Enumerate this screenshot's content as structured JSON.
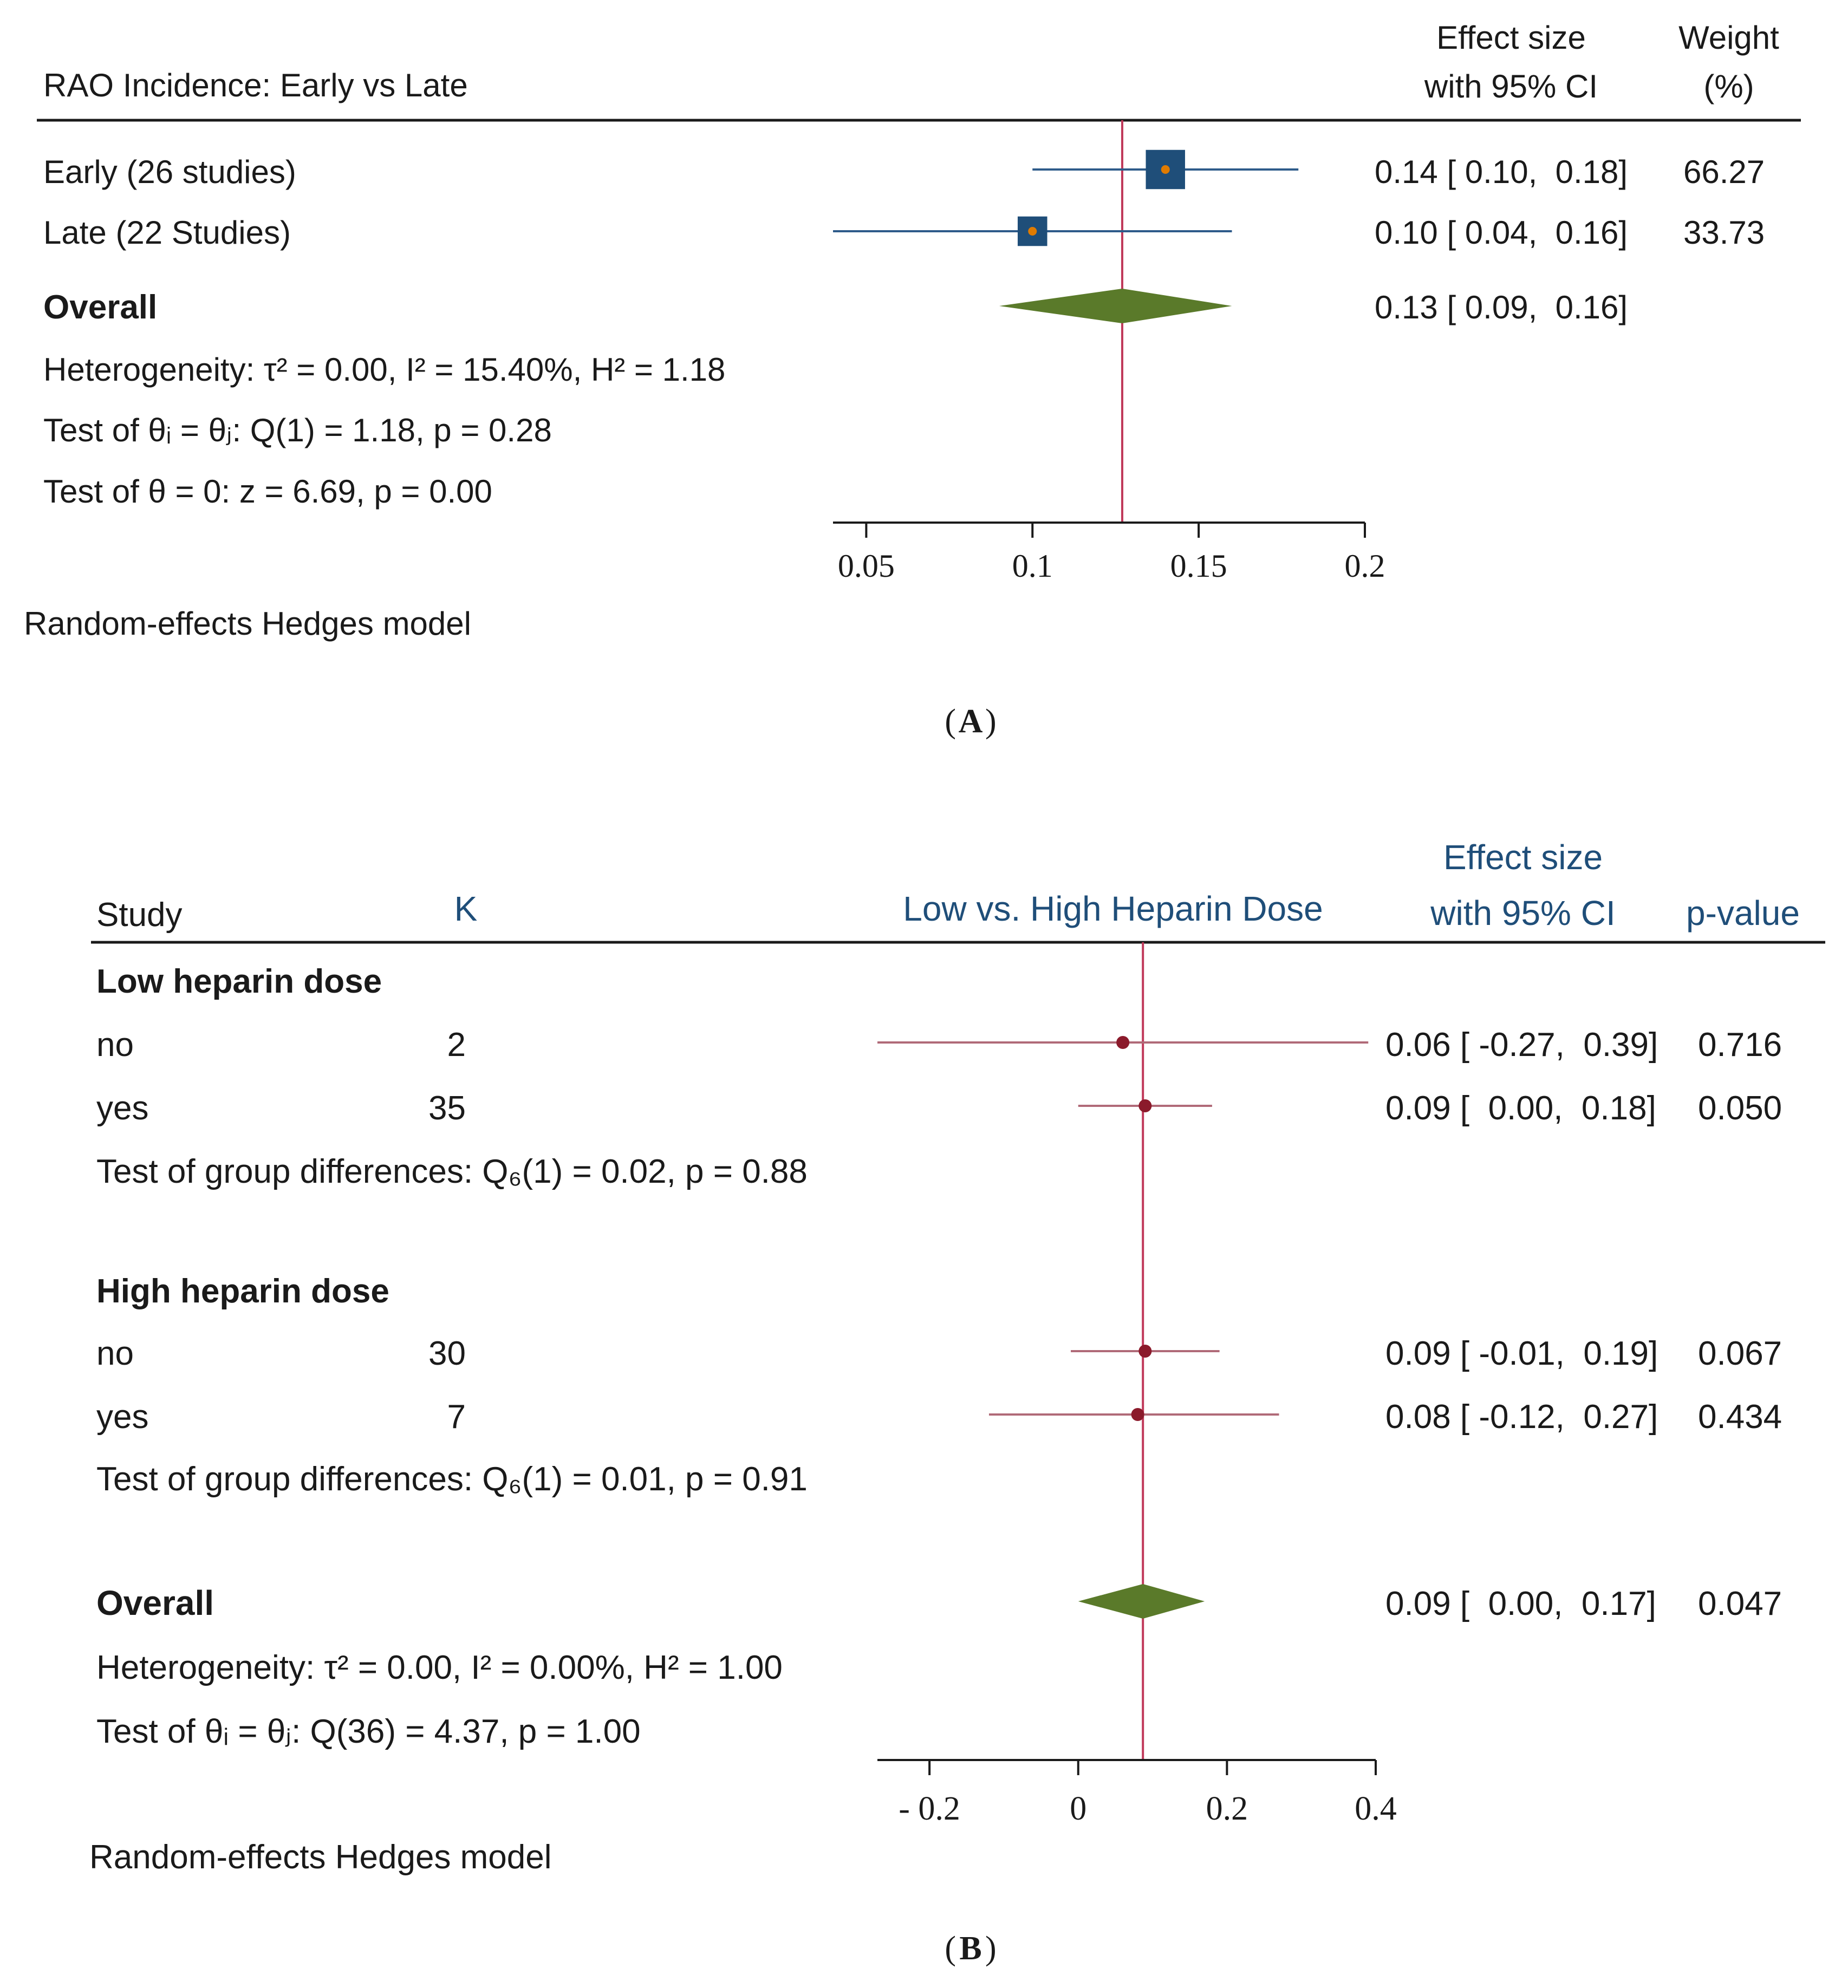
{
  "colors": {
    "text": "#1a1a1a",
    "blue_text": "#1f4e79",
    "ref_line": "#c0395a",
    "ci_a": "#2e5b8a",
    "marker_a": "#1f4e79",
    "marker_a_dot": "#e07b00",
    "ci_b": "#b06a78",
    "marker_b": "#8b1a2b",
    "diamond": "#5a7a2a"
  },
  "chart_data": [
    {
      "type": "forest",
      "panel_label": "A",
      "title": "RAO Incidence: Early vs Late",
      "col_effect_line1": "Effect size",
      "col_effect_line2": "with 95% CI",
      "col_weight_line1": "Weight",
      "col_weight_line2": "(%)",
      "xlim": [
        0.04,
        0.2
      ],
      "ref_value": 0.127,
      "ticks": [
        0.05,
        0.1,
        0.15,
        0.2
      ],
      "tick_labels": [
        "0.05",
        "0.1",
        "0.15",
        "0.2"
      ],
      "rows": [
        {
          "label": "Early (26 studies)",
          "est": 0.14,
          "lo": 0.1,
          "hi": 0.18,
          "effect_text": "0.14 [ 0.10,  0.18]",
          "weight": 66.27,
          "weight_text": "66.27"
        },
        {
          "label": "Late (22 Studies)",
          "est": 0.1,
          "lo": 0.04,
          "hi": 0.16,
          "effect_text": "0.10 [ 0.04,  0.16]",
          "weight": 33.73,
          "weight_text": "33.73"
        }
      ],
      "overall": {
        "label": "Overall",
        "est": 0.127,
        "lo": 0.09,
        "hi": 0.16,
        "effect_text": "0.13 [ 0.09,  0.16]"
      },
      "stats_heterogeneity": "Heterogeneity: τ² = 0.00, I² = 15.40%, H² = 1.18",
      "stats_q": "Test of θᵢ = θⱼ: Q(1) = 1.18, p = 0.28",
      "stats_z": "Test of θ = 0: z = 6.69, p = 0.00",
      "model": "Random-effects Hedges model"
    },
    {
      "type": "forest",
      "panel_label": "B",
      "col_study": "Study",
      "col_k": "K",
      "col_plot": "Low vs. High Heparin Dose",
      "col_effect_line1": "Effect size",
      "col_effect_line2": "with 95% CI",
      "col_p": "p-value",
      "xlim": [
        -0.27,
        0.4
      ],
      "ref_value": 0.087,
      "ticks": [
        -0.2,
        0,
        0.2,
        0.4
      ],
      "tick_labels": [
        "- 0.2",
        "0",
        "0.2",
        "0.4"
      ],
      "groups": [
        {
          "name": "Low heparin dose",
          "rows": [
            {
              "label": "no",
              "k": "2",
              "est": 0.06,
              "lo": -0.27,
              "hi": 0.39,
              "effect_text": "0.06 [ -0.27,  0.39]",
              "p": "0.716"
            },
            {
              "label": "yes",
              "k": "35",
              "est": 0.09,
              "lo": 0.0,
              "hi": 0.18,
              "effect_text": "0.09 [  0.00,  0.18]",
              "p": "0.050"
            }
          ],
          "test": "Test of group differences: Q₆(1) = 0.02, p = 0.88"
        },
        {
          "name": "High heparin dose",
          "rows": [
            {
              "label": "no",
              "k": "30",
              "est": 0.09,
              "lo": -0.01,
              "hi": 0.19,
              "effect_text": "0.09 [ -0.01,  0.19]",
              "p": "0.067"
            },
            {
              "label": "yes",
              "k": "7",
              "est": 0.08,
              "lo": -0.12,
              "hi": 0.27,
              "effect_text": "0.08 [ -0.12,  0.27]",
              "p": "0.434"
            }
          ],
          "test": "Test of group differences: Q₆(1) = 0.01, p = 0.91"
        }
      ],
      "overall": {
        "label": "Overall",
        "est": 0.087,
        "lo": 0.0,
        "hi": 0.17,
        "effect_text": "0.09 [  0.00,  0.17]",
        "p": "0.047"
      },
      "stats_heterogeneity": "Heterogeneity: τ² = 0.00, I² = 0.00%, H² = 1.00",
      "stats_q": "Test of θᵢ = θⱼ: Q(36) = 4.37, p = 1.00",
      "model": "Random-effects Hedges model"
    }
  ]
}
